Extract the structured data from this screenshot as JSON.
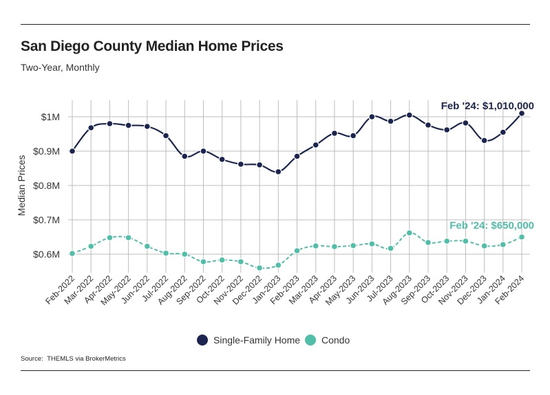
{
  "header": {
    "title": "San Diego County Median Home Prices",
    "subtitle": "Two-Year, Monthly"
  },
  "footer": {
    "source_label": "Source:",
    "source_text": "THEMLS via BrokerMetrics"
  },
  "colors": {
    "single_family": "#1b2550",
    "condo": "#4fbfa8",
    "grid": "#bdbdbd",
    "text": "#333333"
  },
  "chart_data": {
    "type": "line",
    "title": "San Diego County Median Home Prices",
    "subtitle": "Two-Year, Monthly",
    "xlabel": "",
    "ylabel": "Median Prices",
    "ylim": [
      550000,
      1040000
    ],
    "yticks": [
      {
        "value": 600000,
        "label": "$0.6M"
      },
      {
        "value": 700000,
        "label": "$0.7M"
      },
      {
        "value": 800000,
        "label": "$0.8M"
      },
      {
        "value": 900000,
        "label": "$0.9M"
      },
      {
        "value": 1000000,
        "label": "$1M"
      }
    ],
    "grid": true,
    "legend_position": "bottom-center",
    "categories": [
      "Feb-2022",
      "Mar-2022",
      "Apr-2022",
      "May-2022",
      "Jun-2022",
      "Jul-2022",
      "Aug-2022",
      "Sep-2022",
      "Oct-2022",
      "Nov-2022",
      "Dec-2022",
      "Jan-2023",
      "Feb-2023",
      "Mar-2023",
      "Apr-2023",
      "May-2023",
      "Jun-2023",
      "Jul-2023",
      "Aug-2023",
      "Sep-2023",
      "Oct-2023",
      "Nov-2023",
      "Dec-2023",
      "Jan-2024",
      "Feb-2024"
    ],
    "series": [
      {
        "name": "Single-Family Home",
        "color": "#1b2550",
        "values": [
          900000,
          968000,
          980000,
          975000,
          972000,
          945000,
          885000,
          900000,
          876000,
          862000,
          860000,
          840000,
          885000,
          918000,
          952000,
          945000,
          1000000,
          987000,
          1005000,
          976000,
          962000,
          982000,
          931000,
          955000,
          1010000
        ],
        "annotation": "Feb '24: $1,010,000"
      },
      {
        "name": "Condo",
        "color": "#4fbfa8",
        "values": [
          602000,
          623000,
          648000,
          648000,
          623000,
          603000,
          600000,
          578000,
          583000,
          578000,
          560000,
          568000,
          610000,
          624000,
          622000,
          625000,
          630000,
          617000,
          662000,
          634000,
          638000,
          638000,
          624000,
          628000,
          650000
        ],
        "annotation": "Feb '24: $650,000"
      }
    ]
  }
}
